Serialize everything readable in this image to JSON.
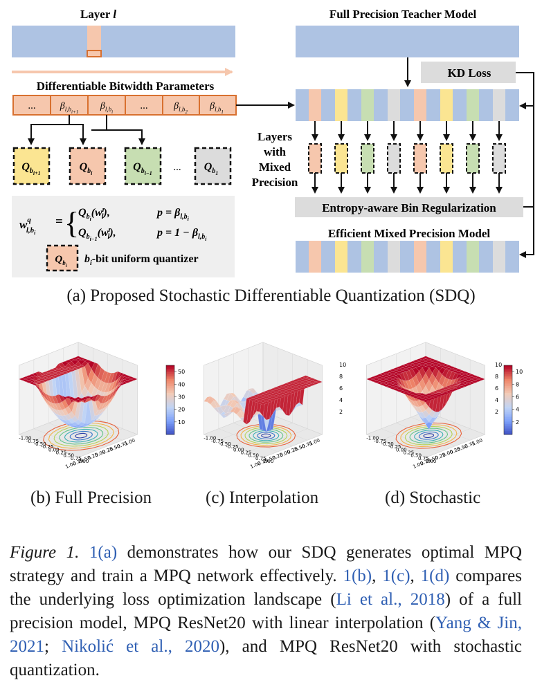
{
  "figure_a": {
    "layer_label": "Layer ",
    "layer_var": "l",
    "dbp_title": "Differentiable Bitwidth Parameters",
    "teacher_title": "Full Precision Teacher Model",
    "kd_loss": "KD Loss",
    "mixed_label": [
      "Layers",
      "with",
      "Mixed",
      "Precision"
    ],
    "entropy_label": "Entropy-aware Bin Regularization",
    "efficient_title": "Efficient Mixed Precision Model",
    "ellipsis": "...",
    "quantizer_desc": "-bit uniform quantizer",
    "colors": {
      "blue": "#aec3e3",
      "peach": "#f6c7ad",
      "yellow": "#fbe592",
      "green": "#c7deb2",
      "gray": "#dcdcdc",
      "orange_border": "#d8702f",
      "panel_gray": "#efefef"
    }
  },
  "captions": {
    "a": "(a) Proposed Stochastic Differentiable Quantization (SDQ)",
    "b": "(b) Full Precision",
    "c": "(c) Interpolation",
    "d": "(d) Stochastic"
  },
  "plots": {
    "b": {
      "colorbar_ticks": [
        "10",
        "20",
        "30",
        "40",
        "50"
      ],
      "zmax": "50"
    },
    "c": {
      "z_ticks": [
        "2",
        "4",
        "6",
        "8",
        "10"
      ]
    },
    "d": {
      "z_ticks": [
        "2",
        "4",
        "6",
        "8",
        "10"
      ],
      "colorbar_ticks": [
        "2",
        "4",
        "6",
        "8",
        "10"
      ]
    },
    "axis_ticks": [
      "1.00",
      "0.75",
      "0.50",
      "0.25",
      "0.00",
      "-0.25",
      "-0.50",
      "-0.75",
      "-1.00"
    ]
  },
  "figure_caption": {
    "label": "Figure 1.",
    "link_a": "1(a)",
    "text1": " demonstrates how our SDQ generates optimal MPQ strategy and train a MPQ network effectively. ",
    "link_b": "1(b)",
    "sep1": ", ",
    "link_c": "1(c)",
    "sep2": ", ",
    "link_d": "1(d)",
    "text2": " compares the underlying loss optimization landscape (",
    "cite1": "Li et al., 2018",
    "text3": ") of a full precision model, MPQ ResNet20 with linear interpolation (",
    "cite2": "Yang & Jin, 2021",
    "sep3": "; ",
    "cite3": "Nikolić et al., 2020",
    "text4": "), and MPQ ResNet20 with stochastic quantization."
  }
}
